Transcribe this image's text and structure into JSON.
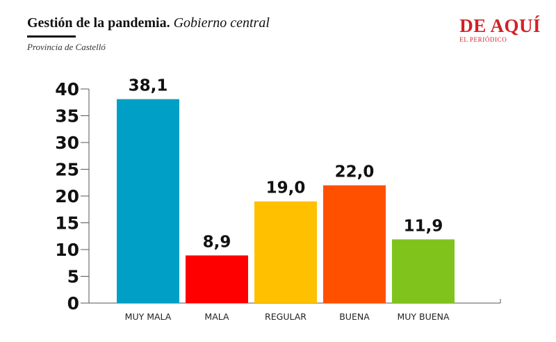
{
  "header": {
    "title_bold": "Gestión de la pandemia.",
    "title_italic": "Gobierno central",
    "subtitle": "Provincia de Castelló"
  },
  "logo": {
    "main": "DE AQUÍ",
    "sub": "EL PERIÓDICO",
    "color": "#d32026"
  },
  "chart_data": {
    "type": "bar",
    "title": "Gestión de la pandemia. Gobierno central",
    "subtitle": "Provincia de Castelló",
    "categories": [
      "MUY MALA",
      "MALA",
      "REGULAR",
      "BUENA",
      "MUY BUENA"
    ],
    "values": [
      38.1,
      8.9,
      19.0,
      22.0,
      11.9
    ],
    "value_labels": [
      "38,1",
      "8,9",
      "19,0",
      "22,0",
      "11,9"
    ],
    "colors": [
      "#00a0c6",
      "#ff0000",
      "#ffc000",
      "#ff5000",
      "#7fc31c"
    ],
    "ylim": [
      0,
      40
    ],
    "yticks": [
      0,
      5,
      10,
      15,
      20,
      25,
      30,
      35,
      40
    ],
    "xlabel": "",
    "ylabel": "",
    "grid": false,
    "legend": "none"
  }
}
